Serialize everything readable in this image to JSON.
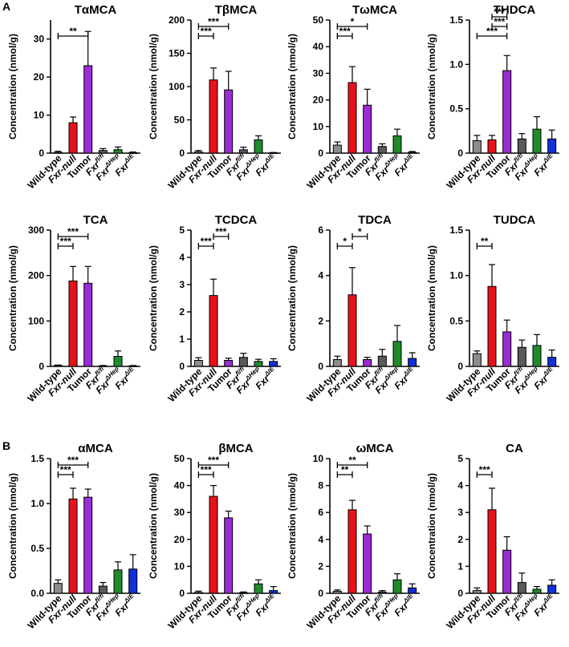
{
  "figure": {
    "panel_labels": [
      "A",
      "B"
    ],
    "groups": [
      {
        "key": "wt",
        "label": "Wild-type",
        "italic": false,
        "sup": "",
        "color": "#8c8c8c"
      },
      {
        "key": "null",
        "label": "Fxr-null",
        "italic": true,
        "sup": "",
        "color": "#e8111a"
      },
      {
        "key": "tumor",
        "label": "Tumor",
        "italic": false,
        "sup": "",
        "color": "#9b2bd6"
      },
      {
        "key": "flfl",
        "label": "Fxr",
        "italic": true,
        "sup": "fl/fl",
        "color": "#5a5a5a"
      },
      {
        "key": "hep",
        "label": "Fxr",
        "italic": true,
        "sup": "ΔHep",
        "color": "#1f8a2a"
      },
      {
        "key": "ie",
        "label": "Fxr",
        "italic": true,
        "sup": "ΔIE",
        "color": "#1030d8"
      }
    ]
  },
  "chart_data": [
    {
      "type": "bar",
      "title": "TαMCA",
      "ylabel": "Concentration (nmol/g)",
      "ylim": [
        0,
        35
      ],
      "yticks": [
        0,
        10,
        20,
        30
      ],
      "values": [
        0.2,
        8,
        23,
        0.7,
        0.9,
        0.1
      ],
      "errors": [
        0.3,
        1.5,
        9,
        0.5,
        0.7,
        0.2
      ],
      "sig": [
        {
          "from": 0,
          "to": 2,
          "label": "**",
          "level": 0
        }
      ]
    },
    {
      "type": "bar",
      "title": "TβMCA",
      "ylabel": "Concentration (nmol/g)",
      "ylim": [
        0,
        200
      ],
      "yticks": [
        0,
        50,
        100,
        150,
        200
      ],
      "values": [
        2,
        110,
        95,
        5,
        20,
        0.5
      ],
      "errors": [
        2,
        18,
        28,
        4,
        6,
        0.5
      ],
      "sig": [
        {
          "from": 0,
          "to": 1,
          "label": "***",
          "level": 0
        },
        {
          "from": 0,
          "to": 2,
          "label": "***",
          "level": 1
        }
      ]
    },
    {
      "type": "bar",
      "title": "TωMCA",
      "ylabel": "Concentration (nmol/g)",
      "ylim": [
        0,
        50
      ],
      "yticks": [
        0,
        10,
        20,
        30,
        40,
        50
      ],
      "values": [
        3,
        26.5,
        18,
        2.5,
        6.5,
        0.3
      ],
      "errors": [
        1.2,
        6,
        6,
        1,
        2.5,
        0.3
      ],
      "sig": [
        {
          "from": 0,
          "to": 1,
          "label": "***",
          "level": 0
        },
        {
          "from": 0,
          "to": 2,
          "label": "*",
          "level": 1
        }
      ]
    },
    {
      "type": "bar",
      "title": "THDCA",
      "ylabel": "Concentration (nmol/g)",
      "ylim": [
        0,
        1.5
      ],
      "yticks": [
        0,
        0.5,
        1.0,
        1.5
      ],
      "ytick_labels": [
        "0",
        "0.5",
        "1.0",
        "1.5"
      ],
      "values": [
        0.14,
        0.15,
        0.93,
        0.16,
        0.27,
        0.16
      ],
      "errors": [
        0.06,
        0.05,
        0.17,
        0.06,
        0.14,
        0.1
      ],
      "sig": [
        {
          "from": 0,
          "to": 2,
          "label": "***",
          "level": 0
        },
        {
          "from": 1,
          "to": 2,
          "label": "***",
          "level": 1
        },
        {
          "from": 1,
          "to": 2,
          "label": "***",
          "level": 2
        }
      ]
    },
    {
      "type": "bar",
      "title": "TCA",
      "ylabel": "Concentration (nmol/g)",
      "ylim": [
        0,
        300
      ],
      "yticks": [
        0,
        100,
        200,
        300
      ],
      "values": [
        2,
        188,
        183,
        1,
        22,
        1
      ],
      "errors": [
        1,
        32,
        37,
        1,
        12,
        1
      ],
      "sig": [
        {
          "from": 0,
          "to": 1,
          "label": "***",
          "level": 0
        },
        {
          "from": 0,
          "to": 2,
          "label": "***",
          "level": 1
        }
      ]
    },
    {
      "type": "bar",
      "title": "TCDCA",
      "ylabel": "Concentration (nmol/g)",
      "ylim": [
        0,
        5
      ],
      "yticks": [
        0,
        1,
        2,
        3,
        4,
        5
      ],
      "values": [
        0.22,
        2.6,
        0.22,
        0.33,
        0.18,
        0.18
      ],
      "errors": [
        0.1,
        0.6,
        0.08,
        0.15,
        0.08,
        0.1
      ],
      "sig": [
        {
          "from": 0,
          "to": 1,
          "label": "***",
          "level": 0
        },
        {
          "from": 1,
          "to": 2,
          "label": "***",
          "level": 1
        }
      ]
    },
    {
      "type": "bar",
      "title": "TDCA",
      "ylabel": "Concentration (nmol/g)",
      "ylim": [
        0,
        6
      ],
      "yticks": [
        0,
        2,
        4,
        6
      ],
      "values": [
        0.3,
        3.15,
        0.3,
        0.45,
        1.1,
        0.35
      ],
      "errors": [
        0.15,
        1.2,
        0.1,
        0.3,
        0.7,
        0.25
      ],
      "sig": [
        {
          "from": 0,
          "to": 1,
          "label": "*",
          "level": 0
        },
        {
          "from": 1,
          "to": 2,
          "label": "*",
          "level": 1
        }
      ]
    },
    {
      "type": "bar",
      "title": "TUDCA",
      "ylabel": "Concentration (nmol/g)",
      "ylim": [
        0,
        1.5
      ],
      "yticks": [
        0,
        0.5,
        1.0,
        1.5
      ],
      "ytick_labels": [
        "0",
        "0.5",
        "1.0",
        "1.5"
      ],
      "values": [
        0.14,
        0.88,
        0.38,
        0.21,
        0.23,
        0.1
      ],
      "errors": [
        0.03,
        0.24,
        0.13,
        0.08,
        0.12,
        0.08
      ],
      "sig": [
        {
          "from": 0,
          "to": 1,
          "label": "**",
          "level": 0
        }
      ]
    },
    {
      "type": "bar",
      "title": "αMCA",
      "ylabel": "Concentration (nmol/g)",
      "ylim": [
        0,
        1.5
      ],
      "yticks": [
        0,
        0.5,
        1.0,
        1.5
      ],
      "ytick_labels": [
        "0.0",
        "0.5",
        "1.0",
        "1.5"
      ],
      "values": [
        0.11,
        1.05,
        1.07,
        0.08,
        0.26,
        0.27
      ],
      "errors": [
        0.04,
        0.12,
        0.09,
        0.04,
        0.09,
        0.16
      ],
      "sig": [
        {
          "from": 0,
          "to": 1,
          "label": "***",
          "level": 0
        },
        {
          "from": 0,
          "to": 2,
          "label": "***",
          "level": 1
        }
      ]
    },
    {
      "type": "bar",
      "title": "βMCA",
      "ylabel": "Concentration (nmol/g)",
      "ylim": [
        0,
        50
      ],
      "yticks": [
        0,
        10,
        20,
        30,
        40,
        50
      ],
      "values": [
        0.3,
        36,
        28,
        0.2,
        3.5,
        1
      ],
      "errors": [
        0.5,
        4,
        2.5,
        0.3,
        1.5,
        1.5
      ],
      "sig": [
        {
          "from": 0,
          "to": 1,
          "label": "***",
          "level": 0
        },
        {
          "from": 0,
          "to": 2,
          "label": "***",
          "level": 1
        }
      ]
    },
    {
      "type": "bar",
      "title": "ωMCA",
      "ylabel": "Concentration (nmol/g)",
      "ylim": [
        0,
        10
      ],
      "yticks": [
        0,
        2,
        4,
        6,
        8,
        10
      ],
      "values": [
        0.15,
        6.2,
        4.4,
        0.1,
        1.0,
        0.4
      ],
      "errors": [
        0.1,
        0.7,
        0.6,
        0.1,
        0.45,
        0.3
      ],
      "sig": [
        {
          "from": 0,
          "to": 1,
          "label": "**",
          "level": 0
        },
        {
          "from": 0,
          "to": 2,
          "label": "**",
          "level": 1
        }
      ]
    },
    {
      "type": "bar",
      "title": "CA",
      "ylabel": "Concentration (nmol/g)",
      "ylim": [
        0,
        5
      ],
      "yticks": [
        0,
        1,
        2,
        3,
        4,
        5
      ],
      "values": [
        0.1,
        3.1,
        1.6,
        0.4,
        0.15,
        0.3
      ],
      "errors": [
        0.1,
        0.8,
        0.5,
        0.35,
        0.1,
        0.2
      ],
      "sig": [
        {
          "from": 0,
          "to": 1,
          "label": "***",
          "level": 0
        }
      ]
    }
  ]
}
